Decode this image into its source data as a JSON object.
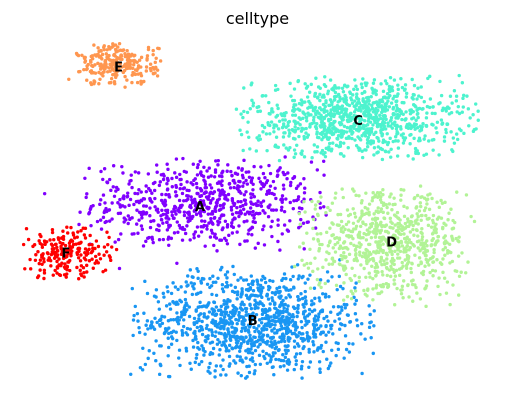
{
  "chart_data": {
    "type": "scatter",
    "title": "celltype",
    "xlabel": "",
    "ylabel": "",
    "grid": false,
    "legend": "on data",
    "x_range": [
      0,
      100
    ],
    "y_range": [
      0,
      100
    ],
    "series": [
      {
        "name": "A",
        "color": "#8000ff",
        "label_position": [
          38,
          52
        ],
        "clusters": [
          {
            "center": [
              39,
              53
            ],
            "spread": [
              11.5,
              6.0
            ],
            "count": 700
          }
        ]
      },
      {
        "name": "B",
        "color": "#1996f3",
        "label_position": [
          49,
          20
        ],
        "clusters": [
          {
            "center": [
              49,
              20
            ],
            "spread": [
              11.0,
              7.0
            ],
            "count": 1080
          }
        ]
      },
      {
        "name": "C",
        "color": "#4df3ce",
        "label_position": [
          71,
          76
        ],
        "clusters": [
          {
            "center": [
              71,
              77
            ],
            "spread": [
              11.0,
              5.3
            ],
            "count": 980
          }
        ]
      },
      {
        "name": "D",
        "color": "#b2f396",
        "label_position": [
          78,
          42
        ],
        "clusters": [
          {
            "center": [
              77,
              42
            ],
            "spread": [
              8.0,
              7.0
            ],
            "count": 750
          }
        ]
      },
      {
        "name": "E",
        "color": "#ff964f",
        "label_position": [
          21,
          91
        ],
        "clusters": [
          {
            "center": [
              21,
              92
            ],
            "spread": [
              4.0,
              2.8
            ],
            "count": 250
          }
        ]
      },
      {
        "name": "F",
        "color": "#ff0000",
        "label_position": [
          10,
          39
        ],
        "clusters": [
          {
            "center": [
              10,
              39
            ],
            "spread": [
              4.5,
              3.4
            ],
            "count": 220
          }
        ]
      }
    ]
  }
}
